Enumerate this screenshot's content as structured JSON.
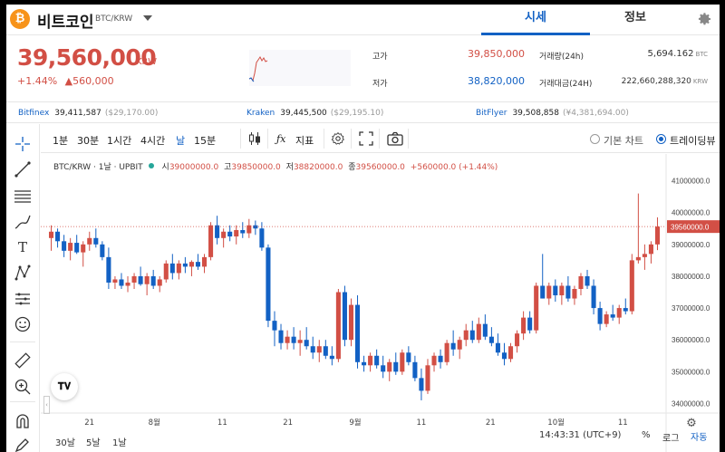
{
  "header": {
    "coin_logo": "₿",
    "coin_name": "비트코인",
    "pair": "BTC/KRW",
    "tabs": [
      {
        "label": "시세",
        "active": true
      },
      {
        "label": "정보",
        "active": false
      }
    ],
    "icons": {
      "settings": "gear-icon",
      "pair_dropdown": "caret-down-icon"
    }
  },
  "price": {
    "current": "39,560,000",
    "unit": "KRW",
    "change_pct": "+1.44%",
    "change_abs": "▲560,000",
    "color_up": "#d24f45",
    "color_down": "#1261c4"
  },
  "stats": {
    "high_label": "고가",
    "high_value": "39,850,000",
    "low_label": "저가",
    "low_value": "38,820,000",
    "volume_label": "거래량(24h)",
    "volume_value": "5,694.162",
    "volume_unit": "BTC",
    "amount_label": "거래대금(24H)",
    "amount_value": "222,660,288,320",
    "amount_unit": "KRW"
  },
  "exchanges": [
    {
      "name": "Bitfinex",
      "price": "39,411,587",
      "diff": "($29,170.00)"
    },
    {
      "name": "Kraken",
      "price": "39,445,500",
      "diff": "($29,195.10)"
    },
    {
      "name": "BitFlyer",
      "price": "39,508,858",
      "diff": "(¥4,381,694.00)"
    }
  ],
  "toolbar": {
    "intervals": [
      {
        "label": "1분",
        "active": false
      },
      {
        "label": "30분",
        "active": false
      },
      {
        "label": "1시간",
        "active": false
      },
      {
        "label": "4시간",
        "active": false
      },
      {
        "label": "날",
        "active": true
      },
      {
        "label": "15분",
        "active": false
      }
    ],
    "indicators_label": "지표",
    "chart_modes": [
      {
        "label": "기본 차트",
        "selected": false
      },
      {
        "label": "트레이딩뷰",
        "selected": true
      }
    ]
  },
  "legend": {
    "symbol": "BTC/KRW · 1날 · UPBIT",
    "o_label": "시",
    "o_value": "39000000.0",
    "h_label": "고",
    "h_value": "39850000.0",
    "l_label": "저",
    "l_value": "38820000.0",
    "c_label": "종",
    "c_value": "39560000.0",
    "change": "+560000.0 (+1.44%)"
  },
  "bottom": {
    "ranges": [
      "30날",
      "5날",
      "1날"
    ],
    "time": "14:43:31 (UTC+9)",
    "pct": "%",
    "log": "로그",
    "auto": "자동"
  },
  "chart_data": {
    "type": "candlestick",
    "x_ticks": [
      "21",
      "8월",
      "11",
      "21",
      "9월",
      "11",
      "21",
      "10월",
      "11"
    ],
    "y_ticks": [
      "41000000.0",
      "40000000.0",
      "39000000.0",
      "38000000.0",
      "37000000.0",
      "36000000.0",
      "35000000.0",
      "34000000.0"
    ],
    "ylim": [
      33700000,
      41500000
    ],
    "last_price_label": "39560000.0",
    "last_price": 39560000,
    "candles": [
      [
        39200000,
        39600000,
        38800000,
        39400000
      ],
      [
        39400000,
        39500000,
        38900000,
        39100000
      ],
      [
        39100000,
        39300000,
        38600000,
        38800000
      ],
      [
        38800000,
        39200000,
        38500000,
        39050000
      ],
      [
        39050000,
        39300000,
        38700000,
        38750000
      ],
      [
        38750000,
        39100000,
        38300000,
        39000000
      ],
      [
        39000000,
        39400000,
        38800000,
        39200000
      ],
      [
        39200000,
        39500000,
        38900000,
        39000000
      ],
      [
        39000000,
        39100000,
        38500000,
        38600000
      ],
      [
        38600000,
        38900000,
        37600000,
        37800000
      ],
      [
        37800000,
        38000000,
        37600000,
        37900000
      ],
      [
        37900000,
        38100000,
        37600000,
        37700000
      ],
      [
        37700000,
        38000000,
        37500000,
        37800000
      ],
      [
        37800000,
        38100000,
        37600000,
        38000000
      ],
      [
        38000000,
        38300000,
        37700000,
        37750000
      ],
      [
        37750000,
        38100000,
        37400000,
        38000000
      ],
      [
        38000000,
        38200000,
        37600000,
        37700000
      ],
      [
        37700000,
        38000000,
        37500000,
        37900000
      ],
      [
        37900000,
        38500000,
        37800000,
        38400000
      ],
      [
        38400000,
        38700000,
        37900000,
        38100000
      ],
      [
        38100000,
        38500000,
        37900000,
        38400000
      ],
      [
        38400000,
        38600000,
        38100000,
        38300000
      ],
      [
        38300000,
        38500000,
        38000000,
        38450000
      ],
      [
        38450000,
        38700000,
        38200000,
        38300000
      ],
      [
        38300000,
        38700000,
        38100000,
        38600000
      ],
      [
        38600000,
        39700000,
        38500000,
        39600000
      ],
      [
        39600000,
        39900000,
        39000000,
        39200000
      ],
      [
        39200000,
        39500000,
        38900000,
        39400000
      ],
      [
        39400000,
        39600000,
        39100000,
        39250000
      ],
      [
        39250000,
        39600000,
        39000000,
        39450000
      ],
      [
        39450000,
        39700000,
        39200000,
        39350000
      ],
      [
        39350000,
        39800000,
        39200000,
        39600000
      ],
      [
        39600000,
        39750000,
        39300000,
        39500000
      ],
      [
        39500000,
        39700000,
        38800000,
        38900000
      ],
      [
        38900000,
        39000000,
        36400000,
        36600000
      ],
      [
        36600000,
        36900000,
        35800000,
        36300000
      ],
      [
        36300000,
        36500000,
        35700000,
        35900000
      ],
      [
        35900000,
        36300000,
        35700000,
        36100000
      ],
      [
        36100000,
        36400000,
        35700000,
        35900000
      ],
      [
        35900000,
        36300000,
        35500000,
        36000000
      ],
      [
        36000000,
        36400000,
        35700000,
        35800000
      ],
      [
        35800000,
        36100000,
        35400000,
        35600000
      ],
      [
        35600000,
        36000000,
        35300000,
        35800000
      ],
      [
        35800000,
        36000000,
        35400000,
        35500000
      ],
      [
        35500000,
        35800000,
        35200000,
        35400000
      ],
      [
        35400000,
        37600000,
        35300000,
        37500000
      ],
      [
        37500000,
        37700000,
        35800000,
        36000000
      ],
      [
        36000000,
        37300000,
        35800000,
        37100000
      ],
      [
        37100000,
        37400000,
        35100000,
        35300000
      ],
      [
        35300000,
        35500000,
        35000000,
        35200000
      ],
      [
        35200000,
        35600000,
        35000000,
        35500000
      ],
      [
        35500000,
        35700000,
        35100000,
        35200000
      ],
      [
        35200000,
        35500000,
        34800000,
        35000000
      ],
      [
        35000000,
        35400000,
        34700000,
        35300000
      ],
      [
        35300000,
        35600000,
        34900000,
        35000000
      ],
      [
        35000000,
        35700000,
        34900000,
        35600000
      ],
      [
        35600000,
        35800000,
        35200000,
        35300000
      ],
      [
        35300000,
        35500000,
        34700000,
        34800000
      ],
      [
        34800000,
        35100000,
        34100000,
        34400000
      ],
      [
        34400000,
        35400000,
        34300000,
        35200000
      ],
      [
        35200000,
        35600000,
        35000000,
        35500000
      ],
      [
        35500000,
        35700000,
        35100000,
        35300000
      ],
      [
        35300000,
        36000000,
        35200000,
        35900000
      ],
      [
        35900000,
        36300000,
        35500000,
        35700000
      ],
      [
        35700000,
        36100000,
        35400000,
        36000000
      ],
      [
        36000000,
        36500000,
        35800000,
        36300000
      ],
      [
        36300000,
        36600000,
        35900000,
        36000000
      ],
      [
        36000000,
        36700000,
        35900000,
        36500000
      ],
      [
        36500000,
        36800000,
        36000000,
        36100000
      ],
      [
        36100000,
        36400000,
        35800000,
        35900000
      ],
      [
        35900000,
        36200000,
        35500000,
        35600000
      ],
      [
        35600000,
        35900000,
        35200000,
        35400000
      ],
      [
        35400000,
        35900000,
        35300000,
        35800000
      ],
      [
        35800000,
        36300000,
        35600000,
        36200000
      ],
      [
        36200000,
        36900000,
        36000000,
        36700000
      ],
      [
        36700000,
        36900000,
        36200000,
        36300000
      ],
      [
        36300000,
        37800000,
        36200000,
        37700000
      ],
      [
        37700000,
        38700000,
        37300000,
        37300000
      ],
      [
        37300000,
        37800000,
        37100000,
        37700000
      ],
      [
        37700000,
        37900000,
        37200000,
        37400000
      ],
      [
        37400000,
        37800000,
        37100000,
        37700000
      ],
      [
        37700000,
        38000000,
        37200000,
        37300000
      ],
      [
        37300000,
        37700000,
        37100000,
        37600000
      ],
      [
        37600000,
        38100000,
        37400000,
        38000000
      ],
      [
        38000000,
        38200000,
        37600000,
        37700000
      ],
      [
        37700000,
        37900000,
        36800000,
        37000000
      ],
      [
        37000000,
        37200000,
        36300000,
        36500000
      ],
      [
        36500000,
        36900000,
        36400000,
        36800000
      ],
      [
        36800000,
        37100000,
        36600000,
        36700000
      ],
      [
        36700000,
        37100000,
        36500000,
        37000000
      ],
      [
        37000000,
        37300000,
        36800000,
        36900000
      ],
      [
        36900000,
        38700000,
        36800000,
        38500000
      ],
      [
        38500000,
        40600000,
        38400000,
        38600000
      ],
      [
        38600000,
        39000000,
        38200000,
        38700000
      ],
      [
        38700000,
        39100000,
        38400000,
        39000000
      ],
      [
        39000000,
        39850000,
        38820000,
        39560000
      ]
    ]
  }
}
